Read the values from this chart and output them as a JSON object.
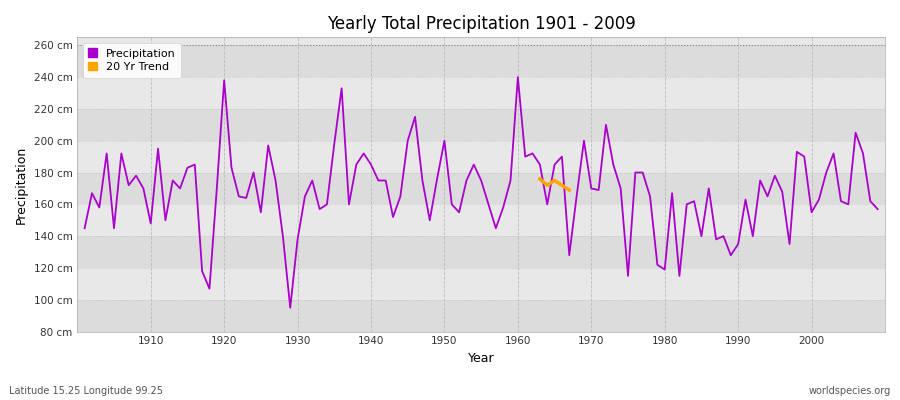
{
  "title": "Yearly Total Precipitation 1901 - 2009",
  "xlabel": "Year",
  "ylabel": "Precipitation",
  "subtitle_left": "Latitude 15.25 Longitude 99.25",
  "subtitle_right": "worldspecies.org",
  "ylim": [
    80,
    265
  ],
  "xlim": [
    1900,
    2010
  ],
  "yticks": [
    80,
    100,
    120,
    140,
    160,
    180,
    200,
    220,
    240,
    260
  ],
  "ytick_labels": [
    "80 cm",
    "100 cm",
    "120 cm",
    "140 cm",
    "160 cm",
    "180 cm",
    "200 cm",
    "220 cm",
    "240 cm",
    "260 cm"
  ],
  "xticks": [
    1910,
    1920,
    1930,
    1940,
    1950,
    1960,
    1970,
    1980,
    1990,
    2000
  ],
  "precip_color": "#AA00CC",
  "trend_color": "#FFA500",
  "fig_bg_color": "#FFFFFF",
  "plot_bg_color": "#E8E8E8",
  "band_colors": [
    "#DCDCDC",
    "#E8E8E8"
  ],
  "years": [
    1901,
    1902,
    1903,
    1904,
    1905,
    1906,
    1907,
    1908,
    1909,
    1910,
    1911,
    1912,
    1913,
    1914,
    1915,
    1916,
    1917,
    1918,
    1919,
    1920,
    1921,
    1922,
    1923,
    1924,
    1925,
    1926,
    1927,
    1928,
    1929,
    1930,
    1931,
    1932,
    1933,
    1934,
    1935,
    1936,
    1937,
    1938,
    1939,
    1940,
    1941,
    1942,
    1943,
    1944,
    1945,
    1946,
    1947,
    1948,
    1949,
    1950,
    1951,
    1952,
    1953,
    1954,
    1955,
    1956,
    1957,
    1958,
    1959,
    1960,
    1961,
    1962,
    1963,
    1964,
    1965,
    1966,
    1967,
    1968,
    1969,
    1970,
    1971,
    1972,
    1973,
    1974,
    1975,
    1976,
    1977,
    1978,
    1979,
    1980,
    1981,
    1982,
    1983,
    1984,
    1985,
    1986,
    1987,
    1988,
    1989,
    1990,
    1991,
    1992,
    1993,
    1994,
    1995,
    1996,
    1997,
    1998,
    1999,
    2000,
    2001,
    2002,
    2003,
    2004,
    2005,
    2006,
    2007,
    2008,
    2009
  ],
  "precip": [
    145,
    167,
    158,
    192,
    145,
    192,
    172,
    178,
    170,
    148,
    195,
    150,
    175,
    170,
    183,
    185,
    118,
    107,
    170,
    238,
    183,
    165,
    164,
    180,
    155,
    197,
    175,
    140,
    95,
    138,
    165,
    175,
    157,
    160,
    198,
    233,
    160,
    185,
    192,
    185,
    175,
    175,
    152,
    165,
    200,
    215,
    175,
    150,
    176,
    200,
    160,
    155,
    175,
    185,
    175,
    160,
    145,
    158,
    175,
    240,
    190,
    192,
    185,
    160,
    185,
    190,
    128,
    165,
    200,
    170,
    169,
    210,
    185,
    170,
    115,
    180,
    180,
    165,
    122,
    119,
    167,
    115,
    160,
    162,
    140,
    170,
    138,
    140,
    128,
    135,
    163,
    140,
    175,
    165,
    178,
    168,
    135,
    193,
    190,
    155,
    163,
    180,
    192,
    162,
    160,
    205,
    192,
    162,
    157
  ],
  "trend_years": [
    1963,
    1964,
    1965,
    1966,
    1967
  ],
  "trend_values": [
    176,
    172,
    175,
    172,
    169
  ]
}
